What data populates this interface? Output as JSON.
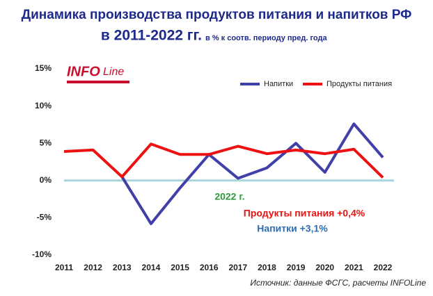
{
  "chart_data": {
    "type": "line",
    "title": "Динамика производства продуктов питания и напитков РФ",
    "title_line2": "в 2011-2022 гг.",
    "subtitle": "в % к соотв. периоду пред. года",
    "logo": [
      "INFO",
      "Line"
    ],
    "categories": [
      "2011",
      "2012",
      "2013",
      "2014",
      "2015",
      "2016",
      "2017",
      "2018",
      "2019",
      "2020",
      "2021",
      "2022"
    ],
    "series": [
      {
        "name": "Напитки",
        "color": "#4040a8",
        "values": [
          null,
          null,
          0.5,
          -5.8,
          -1.0,
          3.5,
          0.3,
          1.7,
          5.0,
          1.1,
          7.6,
          3.1
        ]
      },
      {
        "name": "Продукты питания",
        "color": "#ee1111",
        "values": [
          3.9,
          4.1,
          0.5,
          4.9,
          3.5,
          3.5,
          4.6,
          3.6,
          4.1,
          3.6,
          4.2,
          0.4
        ]
      }
    ],
    "ylim": [
      -10,
      15
    ],
    "yticks": [
      {
        "value": -10,
        "label": "-10%"
      },
      {
        "value": -5,
        "label": "-5%"
      },
      {
        "value": 0,
        "label": "0%"
      },
      {
        "value": 5,
        "label": "5%"
      },
      {
        "value": 10,
        "label": "10%"
      },
      {
        "value": 15,
        "label": "15%"
      }
    ],
    "zero_line_color": "#a8d4dc",
    "legend": "top-right",
    "annotations": [
      {
        "text": "2022 г.",
        "color": "#2e9a3a"
      },
      {
        "text": "Продукты питания  +0,4%",
        "color": "#ee1111"
      },
      {
        "text": "Напитки +3,1%",
        "color": "#2e6cb0"
      }
    ],
    "source": "Источник: данные ФСГС, расчеты INFOLine"
  }
}
